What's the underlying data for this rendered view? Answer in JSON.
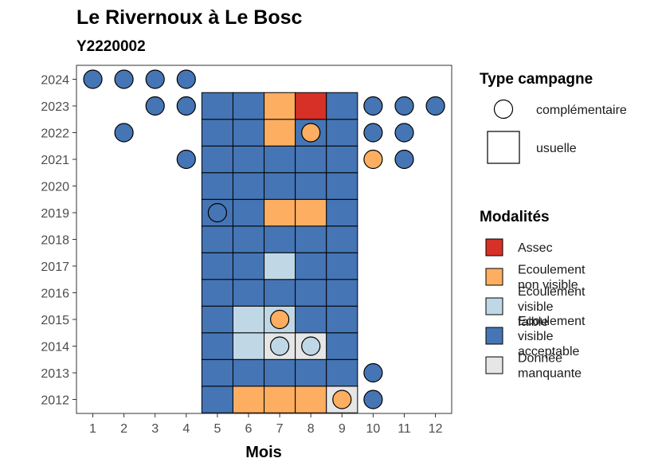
{
  "title": "Le Rivernoux à Le Bosc",
  "subtitle": "Y2220002",
  "chart_data": {
    "type": "heatmap",
    "xlabel": "Mois",
    "ylabel": "",
    "x_ticks": [
      "1",
      "2",
      "3",
      "4",
      "5",
      "6",
      "7",
      "8",
      "9",
      "10",
      "11",
      "12"
    ],
    "y_ticks": [
      "2012",
      "2013",
      "2014",
      "2015",
      "2016",
      "2017",
      "2018",
      "2019",
      "2020",
      "2021",
      "2022",
      "2023",
      "2024"
    ],
    "colors": {
      "Assec": "#d73027",
      "Ecoulement non visible": "#fdae61",
      "Ecoulement visible faible": "#c0d8e6",
      "Ecoulement visible acceptable": "#4575b4",
      "Donnée manquante": "#e6e6e6"
    },
    "usuelle": [
      {
        "year": 2012,
        "month": 5,
        "value": "Ecoulement visible acceptable"
      },
      {
        "year": 2012,
        "month": 6,
        "value": "Ecoulement non visible"
      },
      {
        "year": 2012,
        "month": 7,
        "value": "Ecoulement non visible"
      },
      {
        "year": 2012,
        "month": 8,
        "value": "Ecoulement non visible"
      },
      {
        "year": 2012,
        "month": 9,
        "value": "Donnée manquante"
      },
      {
        "year": 2013,
        "month": 5,
        "value": "Ecoulement visible acceptable"
      },
      {
        "year": 2013,
        "month": 6,
        "value": "Ecoulement visible acceptable"
      },
      {
        "year": 2013,
        "month": 7,
        "value": "Ecoulement visible acceptable"
      },
      {
        "year": 2013,
        "month": 8,
        "value": "Ecoulement visible acceptable"
      },
      {
        "year": 2013,
        "month": 9,
        "value": "Ecoulement visible acceptable"
      },
      {
        "year": 2014,
        "month": 5,
        "value": "Ecoulement visible acceptable"
      },
      {
        "year": 2014,
        "month": 6,
        "value": "Ecoulement visible faible"
      },
      {
        "year": 2014,
        "month": 7,
        "value": "Donnée manquante"
      },
      {
        "year": 2014,
        "month": 8,
        "value": "Donnée manquante"
      },
      {
        "year": 2014,
        "month": 9,
        "value": "Ecoulement visible acceptable"
      },
      {
        "year": 2015,
        "month": 5,
        "value": "Ecoulement visible acceptable"
      },
      {
        "year": 2015,
        "month": 6,
        "value": "Ecoulement visible faible"
      },
      {
        "year": 2015,
        "month": 7,
        "value": "Ecoulement visible faible"
      },
      {
        "year": 2015,
        "month": 8,
        "value": "Ecoulement visible acceptable"
      },
      {
        "year": 2015,
        "month": 9,
        "value": "Ecoulement visible acceptable"
      },
      {
        "year": 2016,
        "month": 5,
        "value": "Ecoulement visible acceptable"
      },
      {
        "year": 2016,
        "month": 6,
        "value": "Ecoulement visible acceptable"
      },
      {
        "year": 2016,
        "month": 7,
        "value": "Ecoulement visible acceptable"
      },
      {
        "year": 2016,
        "month": 8,
        "value": "Ecoulement visible acceptable"
      },
      {
        "year": 2016,
        "month": 9,
        "value": "Ecoulement visible acceptable"
      },
      {
        "year": 2017,
        "month": 5,
        "value": "Ecoulement visible acceptable"
      },
      {
        "year": 2017,
        "month": 6,
        "value": "Ecoulement visible acceptable"
      },
      {
        "year": 2017,
        "month": 7,
        "value": "Ecoulement visible faible"
      },
      {
        "year": 2017,
        "month": 8,
        "value": "Ecoulement visible acceptable"
      },
      {
        "year": 2017,
        "month": 9,
        "value": "Ecoulement visible acceptable"
      },
      {
        "year": 2018,
        "month": 5,
        "value": "Ecoulement visible acceptable"
      },
      {
        "year": 2018,
        "month": 6,
        "value": "Ecoulement visible acceptable"
      },
      {
        "year": 2018,
        "month": 7,
        "value": "Ecoulement visible acceptable"
      },
      {
        "year": 2018,
        "month": 8,
        "value": "Ecoulement visible acceptable"
      },
      {
        "year": 2018,
        "month": 9,
        "value": "Ecoulement visible acceptable"
      },
      {
        "year": 2019,
        "month": 5,
        "value": "Ecoulement visible acceptable"
      },
      {
        "year": 2019,
        "month": 6,
        "value": "Ecoulement visible acceptable"
      },
      {
        "year": 2019,
        "month": 7,
        "value": "Ecoulement non visible"
      },
      {
        "year": 2019,
        "month": 8,
        "value": "Ecoulement non visible"
      },
      {
        "year": 2019,
        "month": 9,
        "value": "Ecoulement visible acceptable"
      },
      {
        "year": 2020,
        "month": 5,
        "value": "Ecoulement visible acceptable"
      },
      {
        "year": 2020,
        "month": 6,
        "value": "Ecoulement visible acceptable"
      },
      {
        "year": 2020,
        "month": 7,
        "value": "Ecoulement visible acceptable"
      },
      {
        "year": 2020,
        "month": 8,
        "value": "Ecoulement visible acceptable"
      },
      {
        "year": 2020,
        "month": 9,
        "value": "Ecoulement visible acceptable"
      },
      {
        "year": 2021,
        "month": 5,
        "value": "Ecoulement visible acceptable"
      },
      {
        "year": 2021,
        "month": 6,
        "value": "Ecoulement visible acceptable"
      },
      {
        "year": 2021,
        "month": 7,
        "value": "Ecoulement visible acceptable"
      },
      {
        "year": 2021,
        "month": 8,
        "value": "Ecoulement visible acceptable"
      },
      {
        "year": 2021,
        "month": 9,
        "value": "Ecoulement visible acceptable"
      },
      {
        "year": 2022,
        "month": 5,
        "value": "Ecoulement visible acceptable"
      },
      {
        "year": 2022,
        "month": 6,
        "value": "Ecoulement visible acceptable"
      },
      {
        "year": 2022,
        "month": 7,
        "value": "Ecoulement non visible"
      },
      {
        "year": 2022,
        "month": 8,
        "value": "Ecoulement visible acceptable"
      },
      {
        "year": 2022,
        "month": 9,
        "value": "Ecoulement visible acceptable"
      },
      {
        "year": 2023,
        "month": 5,
        "value": "Ecoulement visible acceptable"
      },
      {
        "year": 2023,
        "month": 6,
        "value": "Ecoulement visible acceptable"
      },
      {
        "year": 2023,
        "month": 7,
        "value": "Ecoulement non visible"
      },
      {
        "year": 2023,
        "month": 8,
        "value": "Assec"
      },
      {
        "year": 2023,
        "month": 9,
        "value": "Ecoulement visible acceptable"
      }
    ],
    "complementaire": [
      {
        "year": 2024,
        "month": 1,
        "value": "Ecoulement visible acceptable"
      },
      {
        "year": 2024,
        "month": 2,
        "value": "Ecoulement visible acceptable"
      },
      {
        "year": 2024,
        "month": 3,
        "value": "Ecoulement visible acceptable"
      },
      {
        "year": 2024,
        "month": 4,
        "value": "Ecoulement visible acceptable"
      },
      {
        "year": 2023,
        "month": 3,
        "value": "Ecoulement visible acceptable"
      },
      {
        "year": 2023,
        "month": 4,
        "value": "Ecoulement visible acceptable"
      },
      {
        "year": 2023,
        "month": 10,
        "value": "Ecoulement visible acceptable"
      },
      {
        "year": 2023,
        "month": 11,
        "value": "Ecoulement visible acceptable"
      },
      {
        "year": 2023,
        "month": 12,
        "value": "Ecoulement visible acceptable"
      },
      {
        "year": 2022,
        "month": 2,
        "value": "Ecoulement visible acceptable"
      },
      {
        "year": 2022,
        "month": 8,
        "value": "Ecoulement non visible"
      },
      {
        "year": 2022,
        "month": 10,
        "value": "Ecoulement visible acceptable"
      },
      {
        "year": 2022,
        "month": 11,
        "value": "Ecoulement visible acceptable"
      },
      {
        "year": 2021,
        "month": 4,
        "value": "Ecoulement visible acceptable"
      },
      {
        "year": 2021,
        "month": 10,
        "value": "Ecoulement non visible"
      },
      {
        "year": 2021,
        "month": 11,
        "value": "Ecoulement visible acceptable"
      },
      {
        "year": 2019,
        "month": 5,
        "value": "Ecoulement visible acceptable"
      },
      {
        "year": 2015,
        "month": 7,
        "value": "Ecoulement non visible"
      },
      {
        "year": 2014,
        "month": 7,
        "value": "Ecoulement visible faible"
      },
      {
        "year": 2014,
        "month": 8,
        "value": "Ecoulement visible faible"
      },
      {
        "year": 2013,
        "month": 10,
        "value": "Ecoulement visible acceptable"
      },
      {
        "year": 2012,
        "month": 9,
        "value": "Ecoulement non visible"
      },
      {
        "year": 2012,
        "month": 10,
        "value": "Ecoulement visible acceptable"
      }
    ]
  },
  "legend_type": {
    "title": "Type campagne",
    "items": [
      {
        "label": "complémentaire",
        "shape": "circle"
      },
      {
        "label": "usuelle",
        "shape": "square"
      }
    ]
  },
  "legend_mod": {
    "title": "Modalités",
    "items": [
      {
        "lines": [
          "Assec"
        ],
        "color": "#d73027"
      },
      {
        "lines": [
          "Ecoulement",
          "non visible"
        ],
        "color": "#fdae61"
      },
      {
        "lines": [
          "Ecoulement",
          "visible",
          "faible"
        ],
        "color": "#c0d8e6"
      },
      {
        "lines": [
          "Ecoulement",
          "visible",
          "acceptable"
        ],
        "color": "#4575b4"
      },
      {
        "lines": [
          "Donnée",
          "manquante"
        ],
        "color": "#e6e6e6"
      }
    ]
  }
}
